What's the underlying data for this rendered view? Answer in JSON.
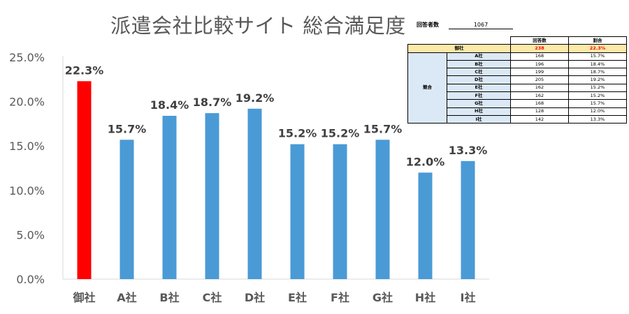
{
  "chart_data": {
    "type": "bar",
    "title": "派遣会社比較サイト 総合満足度",
    "categories": [
      "御社",
      "A社",
      "B社",
      "C社",
      "D社",
      "E社",
      "F社",
      "G社",
      "H社",
      "I社"
    ],
    "values": [
      22.3,
      15.7,
      18.4,
      18.7,
      19.2,
      15.2,
      15.2,
      15.7,
      12.0,
      13.3
    ],
    "data_labels": [
      "22.3%",
      "15.7%",
      "18.4%",
      "18.7%",
      "19.2%",
      "15.2%",
      "15.2%",
      "15.7%",
      "12.0%",
      "13.3%"
    ],
    "ylim": [
      0,
      25
    ],
    "yticks": [
      "0.0%",
      "5.0%",
      "10.0%",
      "15.0%",
      "20.0%",
      "25.0%"
    ],
    "colors": [
      "#ff0000",
      "#4a9ad6",
      "#4a9ad6",
      "#4a9ad6",
      "#4a9ad6",
      "#4a9ad6",
      "#4a9ad6",
      "#4a9ad6",
      "#4a9ad6",
      "#4a9ad6"
    ],
    "grid": false,
    "legend": "none"
  },
  "respondents": {
    "label": "回答者数",
    "value": "1067"
  },
  "table": {
    "headers": [
      "回答数",
      "割合"
    ],
    "own": {
      "label": "御社",
      "count": "238",
      "ratio": "22.3%"
    },
    "group_label": "競合",
    "rows": [
      {
        "name": "A社",
        "count": "168",
        "ratio": "15.7%"
      },
      {
        "name": "B社",
        "count": "196",
        "ratio": "18.4%"
      },
      {
        "name": "C社",
        "count": "199",
        "ratio": "18.7%"
      },
      {
        "name": "D社",
        "count": "205",
        "ratio": "19.2%"
      },
      {
        "name": "E社",
        "count": "162",
        "ratio": "15.2%"
      },
      {
        "name": "F社",
        "count": "162",
        "ratio": "15.2%"
      },
      {
        "name": "G社",
        "count": "168",
        "ratio": "15.7%"
      },
      {
        "name": "H社",
        "count": "128",
        "ratio": "12.0%"
      },
      {
        "name": "I社",
        "count": "142",
        "ratio": "13.3%"
      }
    ]
  }
}
